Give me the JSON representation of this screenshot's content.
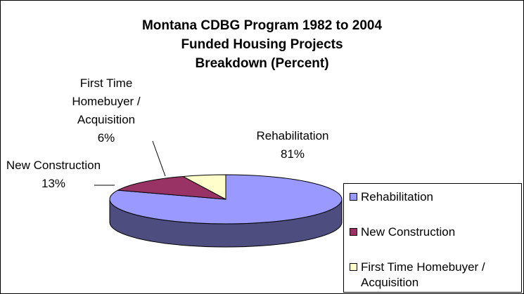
{
  "chart_data": {
    "type": "pie",
    "title": [
      "Montana CDBG Program 1982 to 2004",
      "Funded Housing Projects",
      "Breakdown (Percent)"
    ],
    "categories": [
      "Rehabilitation",
      "New Construction",
      "First Time Homebuyer / Acquisition"
    ],
    "values": [
      81,
      13,
      6
    ],
    "value_labels": [
      "81%",
      "13%",
      "6%"
    ],
    "colors": [
      "#9999ff",
      "#993366",
      "#ffffcc"
    ],
    "legend": "right"
  }
}
